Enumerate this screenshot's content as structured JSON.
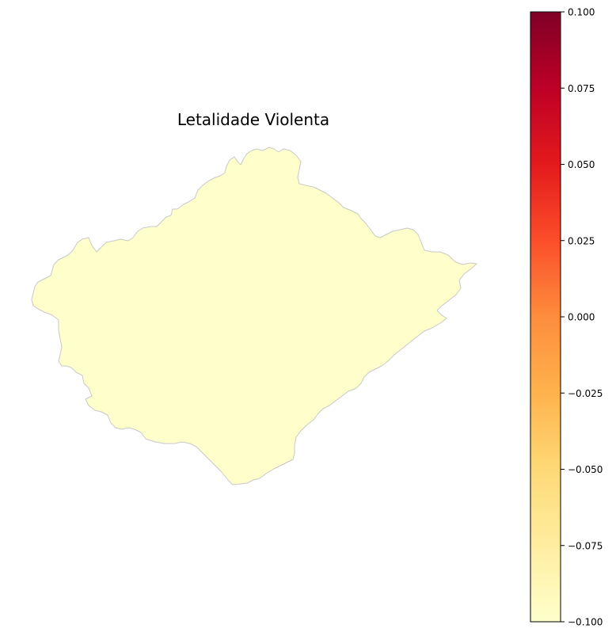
{
  "title": "Letalidade Violenta",
  "region": {
    "value": -0.1,
    "fill_color": "#ffffcc",
    "edge_color": "#c8c8c8"
  },
  "colorbar": {
    "cmap": "YlOrRd",
    "vmin": -0.1,
    "vmax": 0.1,
    "colors": [
      "#ffffcc",
      "#ffeda0",
      "#fed976",
      "#feb24c",
      "#fd8d3c",
      "#fc4e2a",
      "#e31a1c",
      "#bd0026",
      "#800026"
    ],
    "ticks": [
      {
        "value": 0.1,
        "label": "0.100"
      },
      {
        "value": 0.075,
        "label": "0.075"
      },
      {
        "value": 0.05,
        "label": "0.050"
      },
      {
        "value": 0.025,
        "label": "0.025"
      },
      {
        "value": 0.0,
        "label": "0.000"
      },
      {
        "value": -0.025,
        "label": "−0.025"
      },
      {
        "value": -0.05,
        "label": "−0.050"
      },
      {
        "value": -0.075,
        "label": "−0.075"
      },
      {
        "value": -0.1,
        "label": "−0.100"
      }
    ]
  }
}
